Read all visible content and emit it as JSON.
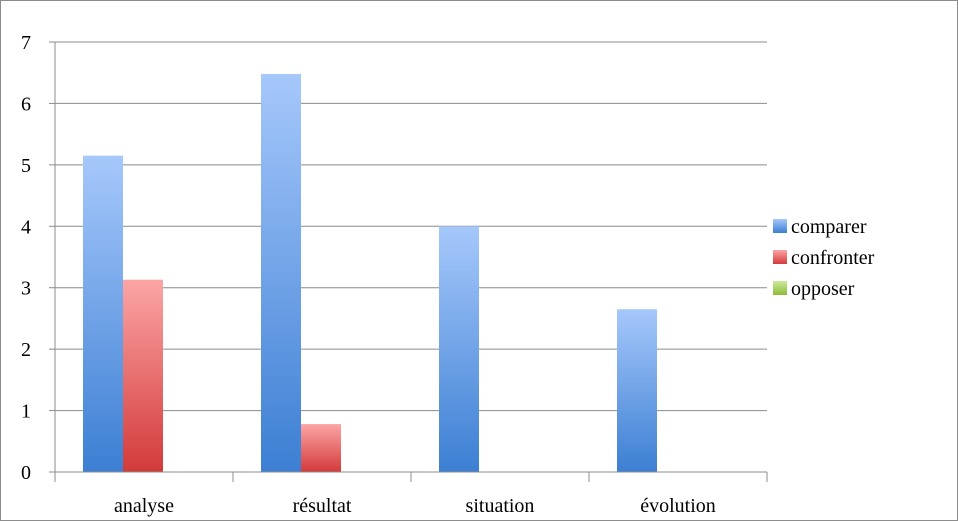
{
  "chart_data": {
    "type": "bar",
    "categories": [
      "analyse",
      "résultat",
      "situation",
      "évolution"
    ],
    "series": [
      {
        "name": "comparer",
        "values": [
          5.15,
          6.48,
          4.0,
          2.65
        ],
        "color": "#4f81bd"
      },
      {
        "name": "confronter",
        "values": [
          3.13,
          0.78,
          0,
          0
        ],
        "color": "#c0504d"
      },
      {
        "name": "opposer",
        "values": [
          0,
          0,
          0,
          0
        ],
        "color": "#9bbb59"
      }
    ],
    "ylim": [
      0,
      7
    ],
    "yticks": [
      0,
      1,
      2,
      3,
      4,
      5,
      6,
      7
    ],
    "grid": true,
    "legend_position": "right",
    "title": "",
    "xlabel": "",
    "ylabel": ""
  }
}
